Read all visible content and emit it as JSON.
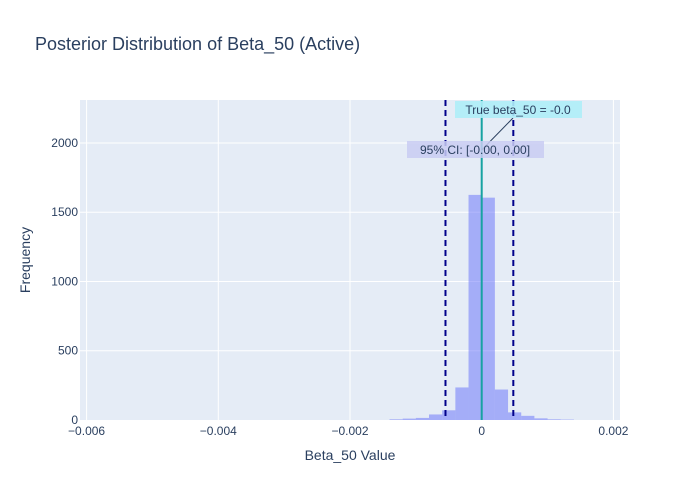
{
  "chart_data": {
    "type": "bar",
    "title": "Posterior Distribution of Beta_50 (Active)",
    "xlabel": "Beta_50 Value",
    "ylabel": "Frequency",
    "xlim": [
      -0.0061,
      0.0021
    ],
    "ylim": [
      0,
      2310
    ],
    "x_ticks": [
      -0.006,
      -0.004,
      -0.002,
      0,
      0.002
    ],
    "x_tick_labels": [
      "−0.006",
      "−0.004",
      "−0.002",
      "0",
      "0.002"
    ],
    "y_ticks": [
      0,
      500,
      1000,
      1500,
      2000
    ],
    "y_tick_labels": [
      "0",
      "500",
      "1000",
      "1500",
      "2000"
    ],
    "grid": true,
    "bin_width": 0.0002,
    "bins": [
      {
        "x0": -0.0014,
        "x1": -0.0012,
        "count": 5
      },
      {
        "x0": -0.0012,
        "x1": -0.001,
        "count": 10
      },
      {
        "x0": -0.001,
        "x1": -0.0008,
        "count": 15
      },
      {
        "x0": -0.0008,
        "x1": -0.0006,
        "count": 40
      },
      {
        "x0": -0.0006,
        "x1": -0.0004,
        "count": 70
      },
      {
        "x0": -0.0004,
        "x1": -0.0002,
        "count": 235
      },
      {
        "x0": -0.0002,
        "x1": 0.0,
        "count": 1625
      },
      {
        "x0": 0.0,
        "x1": 0.0002,
        "count": 1605
      },
      {
        "x0": 0.0002,
        "x1": 0.0004,
        "count": 220
      },
      {
        "x0": 0.0004,
        "x1": 0.0006,
        "count": 55
      },
      {
        "x0": 0.0006,
        "x1": 0.0008,
        "count": 30
      },
      {
        "x0": 0.0008,
        "x1": 0.001,
        "count": 12
      },
      {
        "x0": 0.001,
        "x1": 0.0012,
        "count": 5
      },
      {
        "x0": 0.0012,
        "x1": 0.0014,
        "count": 3
      }
    ],
    "true_value_line": {
      "x": 0.0
    },
    "ci_lines": [
      -0.00055,
      0.00048
    ],
    "annotations": {
      "true_label": "True beta_50 = -0.0",
      "ci_label": "95% CI: [-0.00, 0.00]"
    },
    "colors": {
      "bars": "#636efa",
      "true_line": "#17a2a2",
      "ci_lines": "#00008b",
      "plot_bg": "#e5ecf6",
      "grid": "#ffffff",
      "true_ann_bg": "#aeeef8",
      "ci_ann_bg": "#c9cdf2"
    }
  }
}
